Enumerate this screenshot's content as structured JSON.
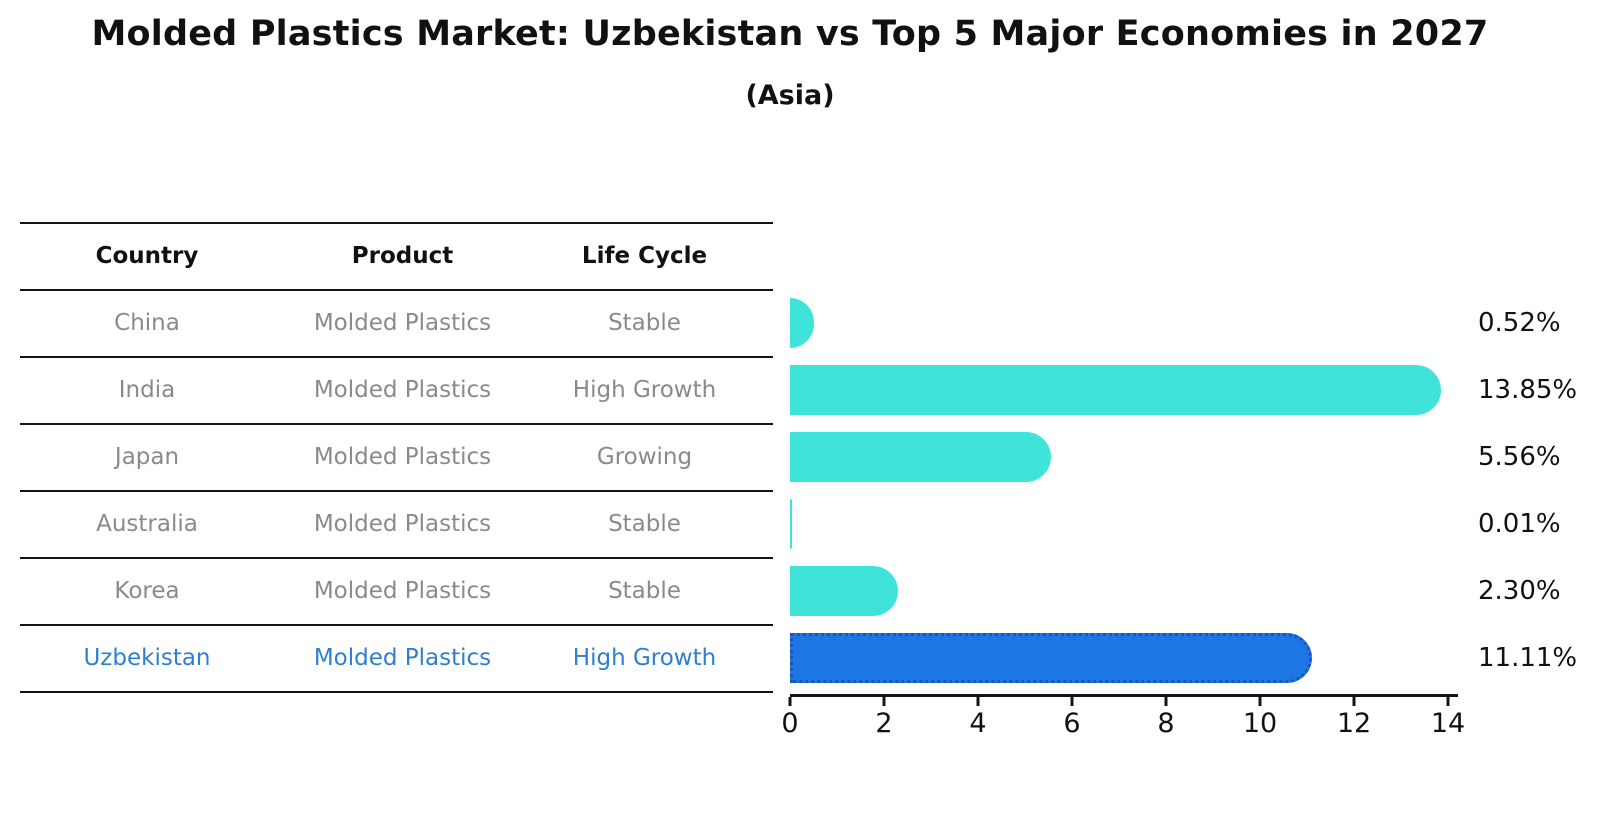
{
  "title": "Molded Plastics Market: Uzbekistan vs Top 5 Major Economies in 2027",
  "subtitle": "(Asia)",
  "table": {
    "headers": {
      "country": "Country",
      "product": "Product",
      "life_cycle": "Life Cycle"
    },
    "rows": [
      {
        "country": "China",
        "product": "Molded Plastics",
        "life_cycle": "Stable"
      },
      {
        "country": "India",
        "product": "Molded Plastics",
        "life_cycle": "High Growth"
      },
      {
        "country": "Japan",
        "product": "Molded Plastics",
        "life_cycle": "Growing"
      },
      {
        "country": "Australia",
        "product": "Molded Plastics",
        "life_cycle": "Stable"
      },
      {
        "country": "Korea",
        "product": "Molded Plastics",
        "life_cycle": "Stable"
      },
      {
        "country": "Uzbekistan",
        "product": "Molded Plastics",
        "life_cycle": "High Growth"
      }
    ]
  },
  "chart_data": {
    "type": "bar",
    "orientation": "horizontal",
    "title": "Molded Plastics Market: Uzbekistan vs Top 5 Major Economies in 2027 (Asia)",
    "categories": [
      "China",
      "India",
      "Japan",
      "Australia",
      "Korea",
      "Uzbekistan"
    ],
    "values": [
      0.52,
      13.85,
      5.56,
      0.01,
      2.3,
      11.11
    ],
    "labels": [
      "0.52%",
      "13.85%",
      "5.56%",
      "0.01%",
      "2.30%",
      "11.11%"
    ],
    "x_ticks": [
      0,
      2,
      4,
      6,
      8,
      10,
      12,
      14
    ],
    "xlim": [
      0,
      14.5
    ],
    "grid": false,
    "legend": "none",
    "bar_color": "#40e3d9",
    "highlight_color": "#1c76e3",
    "highlight_border_color": "#1d55b0",
    "highlight_index": 5
  },
  "colors": {
    "text_primary": "#111111",
    "text_muted": "#8a8a8a",
    "text_highlight": "#2e7fd2",
    "line": "#141414",
    "background": "#ffffff"
  }
}
